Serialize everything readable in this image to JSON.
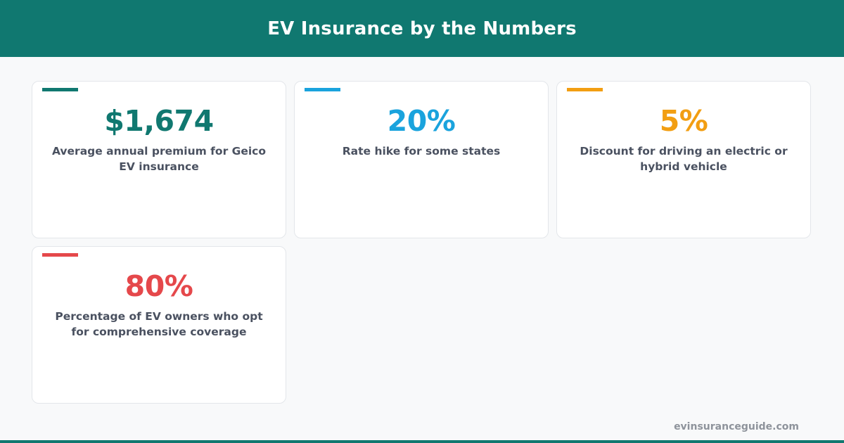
{
  "header": {
    "title": "EV Insurance by the Numbers"
  },
  "colors": {
    "brand": "#107870",
    "teal": "#107870",
    "blue": "#1aa3dd",
    "orange": "#f29e12",
    "red": "#e5484b",
    "text": "#4a5160",
    "muted": "#8e939b"
  },
  "stats": [
    {
      "value": "$1,674",
      "description": "Average annual premium for Geico EV insurance",
      "accent_color": "#107870"
    },
    {
      "value": "20%",
      "description": "Rate hike for some states",
      "accent_color": "#1aa3dd"
    },
    {
      "value": "5%",
      "description": "Discount for driving an electric or hybrid vehicle",
      "accent_color": "#f29e12"
    },
    {
      "value": "80%",
      "description": "Percentage of EV owners who opt for comprehensive coverage",
      "accent_color": "#e5484b"
    }
  ],
  "footer": {
    "site": "evinsuranceguide.com"
  }
}
